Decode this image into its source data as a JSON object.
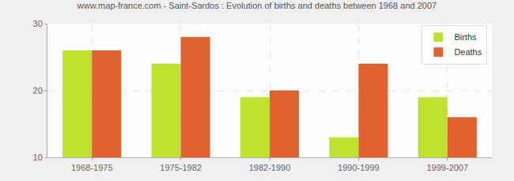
{
  "chart_data": {
    "type": "bar",
    "title": "www.map-france.com - Saint-Sardos : Evolution of births and deaths between 1968 and 2007",
    "categories": [
      "1968-1975",
      "1975-1982",
      "1982-1990",
      "1990-1999",
      "1999-2007"
    ],
    "series": [
      {
        "name": "Births",
        "color": "#bde12e",
        "values": [
          26,
          24,
          19,
          13,
          19
        ]
      },
      {
        "name": "Deaths",
        "color": "#e0632f",
        "values": [
          26,
          28,
          20,
          24,
          16
        ]
      }
    ],
    "ylim": [
      10,
      30
    ],
    "yticks": [
      10,
      20,
      30
    ],
    "grid": true,
    "legend": "top-right"
  }
}
